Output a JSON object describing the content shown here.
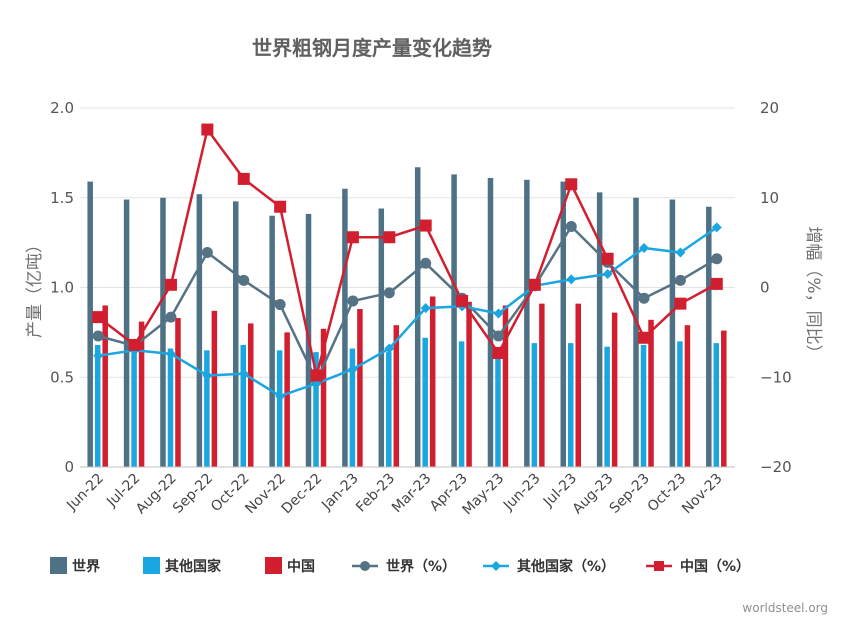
{
  "chart_data": {
    "type": "bar+line",
    "title": "世界粗钢月度产量变化趋势",
    "categories": [
      "Jun-22",
      "Jul-22",
      "Aug-22",
      "Sep-22",
      "Oct-22",
      "Nov-22",
      "Dec-22",
      "Jan-23",
      "Feb-23",
      "Mar-23",
      "Apr-23",
      "May-23",
      "Jun-23",
      "Jul-23",
      "Aug-23",
      "Sep-23",
      "Oct-23",
      "Nov-23"
    ],
    "y_left": {
      "label": "产量（亿吨）",
      "min": 0,
      "max": 2.0,
      "ticks": [
        "0",
        "0.5",
        "1.0",
        "1.5",
        "2.0"
      ],
      "tick_values": [
        0,
        0.5,
        1.0,
        1.5,
        2.0
      ]
    },
    "y_right": {
      "label": "增幅（%，同比）",
      "min": -20,
      "max": 20,
      "ticks": [
        "−20",
        "−10",
        "0",
        "10",
        "20"
      ],
      "tick_values": [
        -20,
        -10,
        0,
        10,
        20
      ]
    },
    "bar_series": [
      {
        "name": "世界",
        "color": "#4f7185",
        "values": [
          1.59,
          1.49,
          1.5,
          1.52,
          1.48,
          1.4,
          1.41,
          1.55,
          1.44,
          1.67,
          1.63,
          1.61,
          1.6,
          1.59,
          1.53,
          1.5,
          1.49,
          1.45
        ]
      },
      {
        "name": "其他国家",
        "color": "#1aa6e0",
        "values": [
          0.68,
          0.67,
          0.66,
          0.65,
          0.68,
          0.65,
          0.64,
          0.66,
          0.64,
          0.72,
          0.7,
          0.62,
          0.69,
          0.69,
          0.67,
          0.68,
          0.7,
          0.69
        ]
      },
      {
        "name": "中国",
        "color": "#d21f30",
        "values": [
          0.9,
          0.81,
          0.83,
          0.87,
          0.8,
          0.75,
          0.77,
          0.88,
          0.79,
          0.95,
          0.92,
          0.9,
          0.91,
          0.91,
          0.86,
          0.82,
          0.79,
          0.76
        ]
      }
    ],
    "line_series": [
      {
        "name": "世界（%）",
        "color": "#557384",
        "marker": "circle",
        "values": [
          -5.4,
          -6.5,
          -3.3,
          3.9,
          0.8,
          -1.9,
          -10.4,
          -1.5,
          -0.6,
          2.7,
          -1.2,
          -5.4,
          0.2,
          6.8,
          2.8,
          -1.2,
          0.8,
          3.2
        ]
      },
      {
        "name": "其他国家（%）",
        "color": "#1aa6e0",
        "marker": "diamond",
        "values": [
          -7.6,
          -7.0,
          -7.4,
          -9.8,
          -9.6,
          -12.1,
          -10.7,
          -9.1,
          -6.8,
          -2.3,
          -2.1,
          -2.9,
          0.2,
          0.9,
          1.5,
          4.4,
          3.9,
          6.7
        ]
      },
      {
        "name": "中国（%）",
        "color": "#d21f30",
        "marker": "square",
        "values": [
          -3.3,
          -6.4,
          0.3,
          17.6,
          12.1,
          9.0,
          -9.8,
          5.6,
          5.6,
          6.9,
          -1.5,
          -7.3,
          0.3,
          11.5,
          3.2,
          -5.6,
          -1.8,
          0.4
        ]
      }
    ],
    "legend": [
      "世界",
      "其他国家",
      "中国",
      "世界（%）",
      "其他国家（%）",
      "中国（%）"
    ],
    "legend_position": "bottom",
    "grid": true,
    "credit": "worldsteel.org"
  }
}
